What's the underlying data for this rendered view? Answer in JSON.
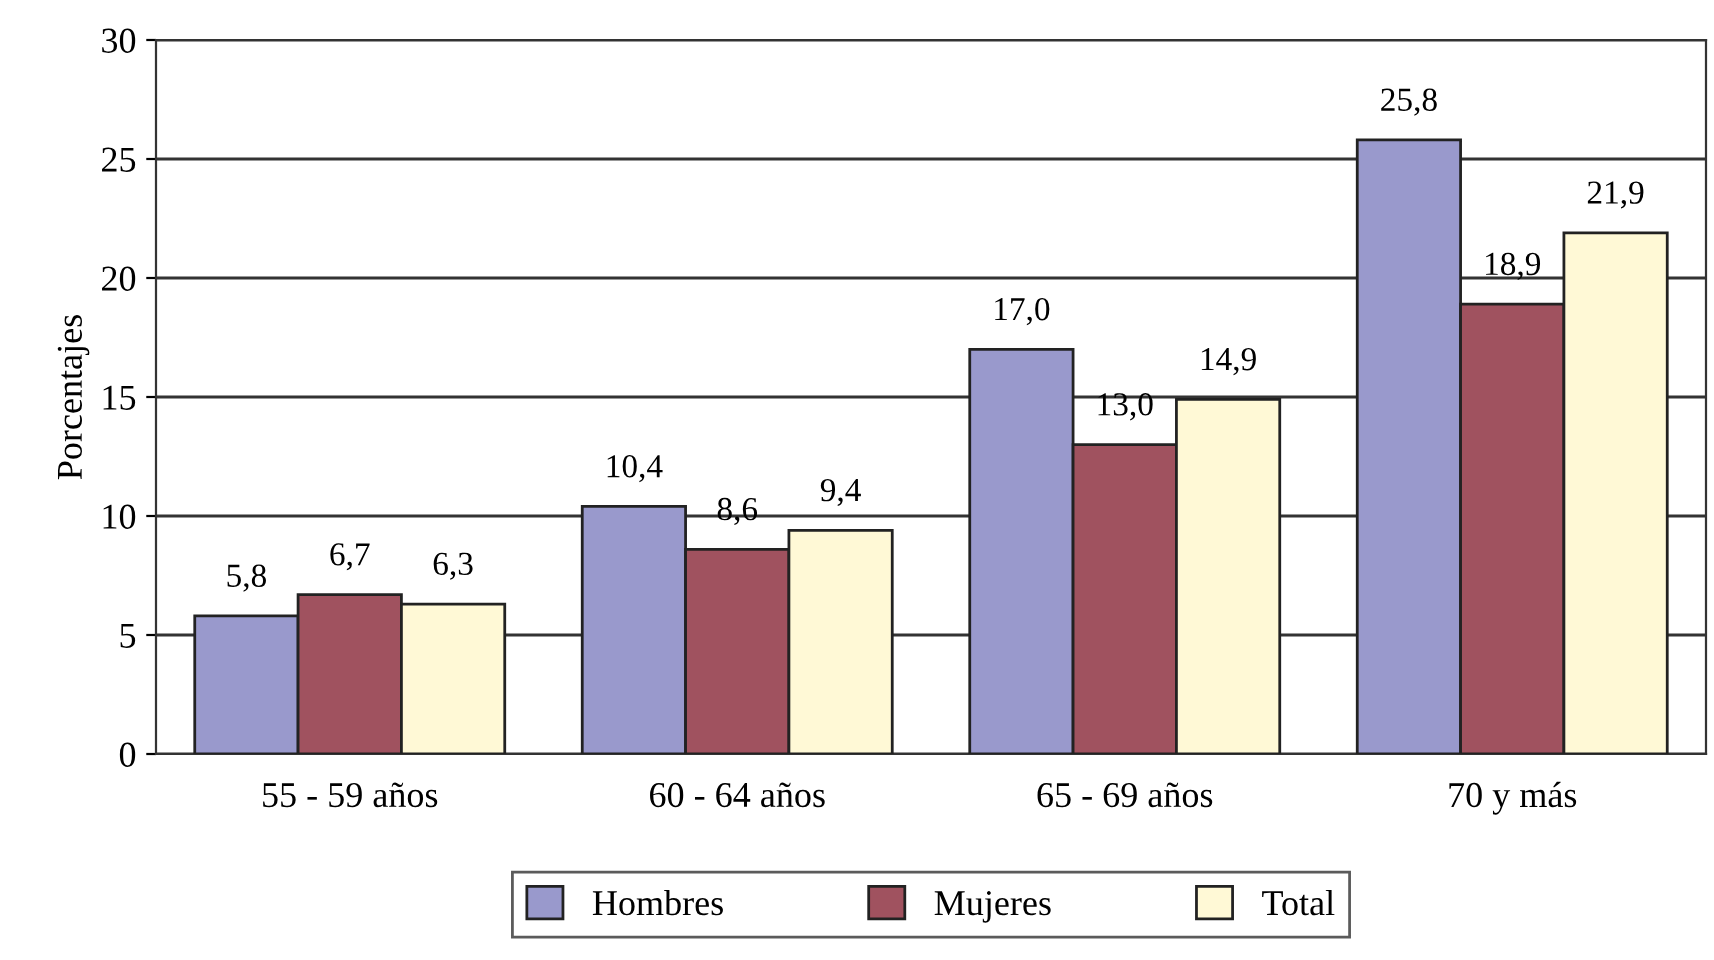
{
  "chart_data": {
    "type": "bar",
    "ylabel": "Porcentajes",
    "categories": [
      "55 - 59 años",
      "60 - 64 años",
      "65 - 69 años",
      "70 y más"
    ],
    "series": [
      {
        "name": "Hombres",
        "color": "#9999cc",
        "values": [
          5.8,
          10.4,
          17.0,
          25.8
        ],
        "value_labels": [
          "5,8",
          "10,4",
          "17,0",
          "25,8"
        ]
      },
      {
        "name": "Mujeres",
        "color": "#a0525f",
        "values": [
          6.7,
          8.6,
          13.0,
          18.9
        ],
        "value_labels": [
          "6,7",
          "8,6",
          "13,0",
          "18,9"
        ]
      },
      {
        "name": "Total",
        "color": "#fff9d6",
        "values": [
          6.3,
          9.4,
          14.9,
          21.9
        ],
        "value_labels": [
          "6,3",
          "9,4",
          "14,9",
          "21,9"
        ]
      }
    ],
    "ylim": [
      0,
      30
    ],
    "yticks": [
      0,
      5,
      10,
      15,
      20,
      25,
      30
    ],
    "grid": "y",
    "legend": "bottom"
  }
}
